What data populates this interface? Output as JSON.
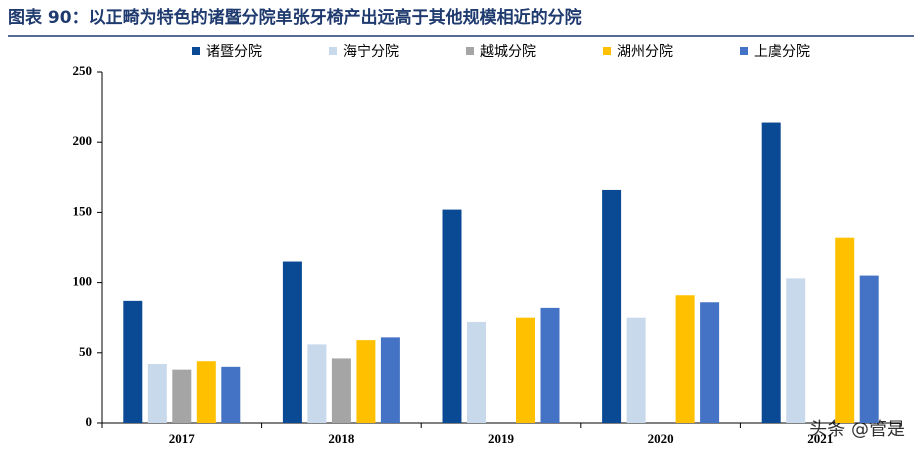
{
  "chart_data": {
    "type": "bar",
    "title": "图表 90：以正畸为特色的诸暨分院单张牙椅产出远高于其他规模相近的分院",
    "categories": [
      "2017",
      "2018",
      "2019",
      "2020",
      "2021"
    ],
    "series": [
      {
        "name": "诸暨分院",
        "color": "#0a4a94",
        "values": [
          87,
          115,
          152,
          166,
          214
        ]
      },
      {
        "name": "海宁分院",
        "color": "#c9d9ec",
        "values": [
          42,
          56,
          72,
          75,
          103
        ]
      },
      {
        "name": "越城分院",
        "color": "#a5a5a5",
        "values": [
          38,
          46,
          null,
          null,
          null
        ]
      },
      {
        "name": "湖州分院",
        "color": "#ffc000",
        "values": [
          44,
          59,
          75,
          91,
          132
        ]
      },
      {
        "name": "上虞分院",
        "color": "#4472c4",
        "values": [
          40,
          61,
          82,
          86,
          105
        ]
      }
    ],
    "ylim": [
      0,
      250
    ],
    "yticks": [
      0,
      50,
      100,
      150,
      200,
      250
    ],
    "watermark": "头条 @管是"
  }
}
